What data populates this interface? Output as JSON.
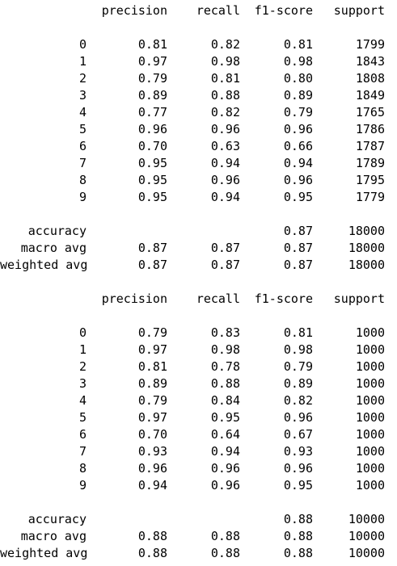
{
  "reports": [
    {
      "header": {
        "label": "",
        "precision": "precision",
        "recall": "recall",
        "f1": "f1-score",
        "support": "support"
      },
      "classes": [
        {
          "label": "0",
          "precision": "0.81",
          "recall": "0.82",
          "f1": "0.81",
          "support": "1799"
        },
        {
          "label": "1",
          "precision": "0.97",
          "recall": "0.98",
          "f1": "0.98",
          "support": "1843"
        },
        {
          "label": "2",
          "precision": "0.79",
          "recall": "0.81",
          "f1": "0.80",
          "support": "1808"
        },
        {
          "label": "3",
          "precision": "0.89",
          "recall": "0.88",
          "f1": "0.89",
          "support": "1849"
        },
        {
          "label": "4",
          "precision": "0.77",
          "recall": "0.82",
          "f1": "0.79",
          "support": "1765"
        },
        {
          "label": "5",
          "precision": "0.96",
          "recall": "0.96",
          "f1": "0.96",
          "support": "1786"
        },
        {
          "label": "6",
          "precision": "0.70",
          "recall": "0.63",
          "f1": "0.66",
          "support": "1787"
        },
        {
          "label": "7",
          "precision": "0.95",
          "recall": "0.94",
          "f1": "0.94",
          "support": "1789"
        },
        {
          "label": "8",
          "precision": "0.95",
          "recall": "0.96",
          "f1": "0.96",
          "support": "1795"
        },
        {
          "label": "9",
          "precision": "0.95",
          "recall": "0.94",
          "f1": "0.95",
          "support": "1779"
        }
      ],
      "summary": [
        {
          "label": "accuracy",
          "precision": "",
          "recall": "",
          "f1": "0.87",
          "support": "18000"
        },
        {
          "label": "macro avg",
          "precision": "0.87",
          "recall": "0.87",
          "f1": "0.87",
          "support": "18000"
        },
        {
          "label": "weighted avg",
          "precision": "0.87",
          "recall": "0.87",
          "f1": "0.87",
          "support": "18000"
        }
      ]
    },
    {
      "header": {
        "label": "",
        "precision": "precision",
        "recall": "recall",
        "f1": "f1-score",
        "support": "support"
      },
      "classes": [
        {
          "label": "0",
          "precision": "0.79",
          "recall": "0.83",
          "f1": "0.81",
          "support": "1000"
        },
        {
          "label": "1",
          "precision": "0.97",
          "recall": "0.98",
          "f1": "0.98",
          "support": "1000"
        },
        {
          "label": "2",
          "precision": "0.81",
          "recall": "0.78",
          "f1": "0.79",
          "support": "1000"
        },
        {
          "label": "3",
          "precision": "0.89",
          "recall": "0.88",
          "f1": "0.89",
          "support": "1000"
        },
        {
          "label": "4",
          "precision": "0.79",
          "recall": "0.84",
          "f1": "0.82",
          "support": "1000"
        },
        {
          "label": "5",
          "precision": "0.97",
          "recall": "0.95",
          "f1": "0.96",
          "support": "1000"
        },
        {
          "label": "6",
          "precision": "0.70",
          "recall": "0.64",
          "f1": "0.67",
          "support": "1000"
        },
        {
          "label": "7",
          "precision": "0.93",
          "recall": "0.94",
          "f1": "0.93",
          "support": "1000"
        },
        {
          "label": "8",
          "precision": "0.96",
          "recall": "0.96",
          "f1": "0.96",
          "support": "1000"
        },
        {
          "label": "9",
          "precision": "0.94",
          "recall": "0.96",
          "f1": "0.95",
          "support": "1000"
        }
      ],
      "summary": [
        {
          "label": "accuracy",
          "precision": "",
          "recall": "",
          "f1": "0.88",
          "support": "10000"
        },
        {
          "label": "macro avg",
          "precision": "0.88",
          "recall": "0.88",
          "f1": "0.88",
          "support": "10000"
        },
        {
          "label": "weighted avg",
          "precision": "0.88",
          "recall": "0.88",
          "f1": "0.88",
          "support": "10000"
        }
      ]
    }
  ]
}
